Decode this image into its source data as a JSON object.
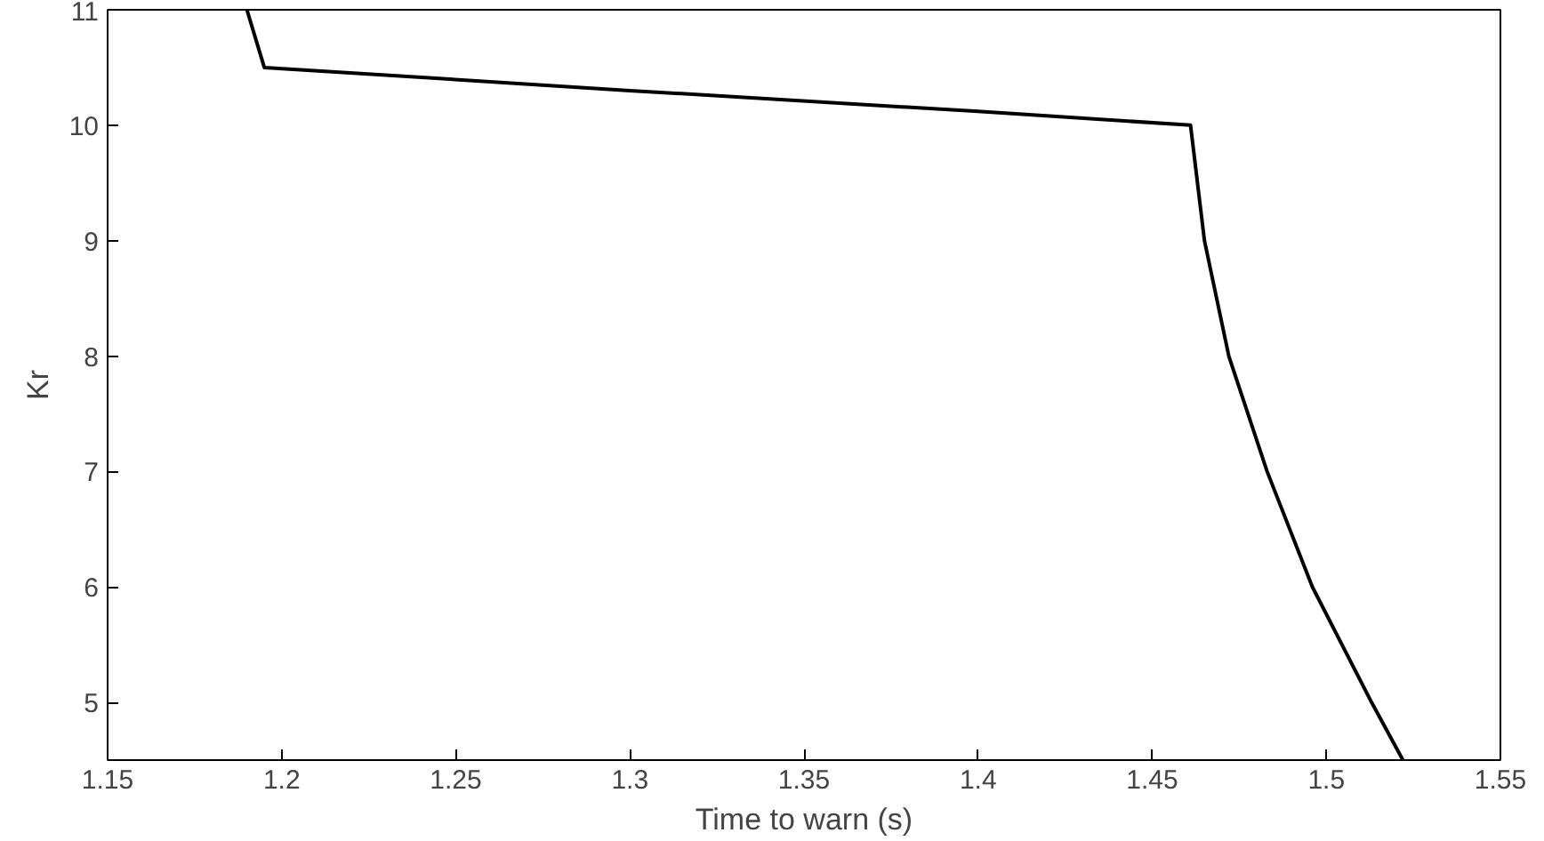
{
  "chart_data": {
    "type": "line",
    "xlabel": "Time to warn (s)",
    "ylabel": "Kr",
    "series": [
      {
        "color": "#000000",
        "x": [
          1.19,
          1.195,
          1.3,
          1.4,
          1.461,
          1.465,
          1.472,
          1.483,
          1.496,
          1.513,
          1.522
        ],
        "values": [
          11.0,
          10.5,
          10.3,
          10.12,
          10.0,
          9.0,
          8.0,
          7.0,
          6.0,
          5.0,
          4.5
        ]
      }
    ],
    "xlim": [
      1.15,
      1.55
    ],
    "ylim": [
      4.5,
      11
    ],
    "xticks": [
      1.15,
      1.2,
      1.25,
      1.3,
      1.35,
      1.4,
      1.45,
      1.5,
      1.55
    ],
    "yticks": [
      5,
      6,
      7,
      8,
      9,
      10,
      11
    ],
    "grid": false,
    "marker": "none",
    "line_style": "solid"
  }
}
